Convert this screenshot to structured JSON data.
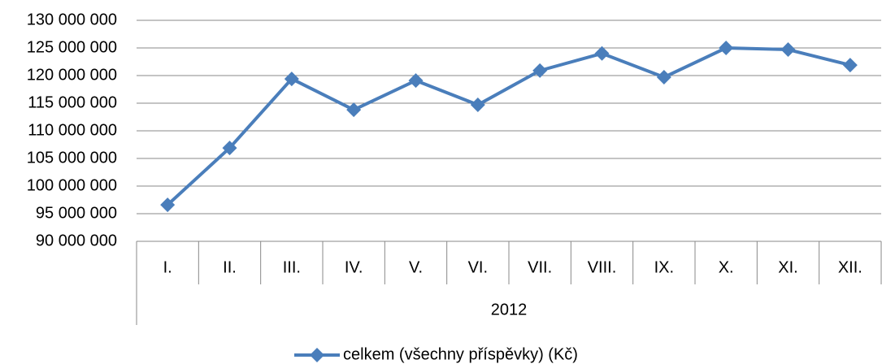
{
  "chart_data": {
    "type": "line",
    "categories": [
      "I.",
      "II.",
      "III.",
      "IV.",
      "V.",
      "VI.",
      "VII.",
      "VIII.",
      "IX.",
      "X.",
      "XI.",
      "XII."
    ],
    "xlabel": "2012",
    "series": [
      {
        "name": "celkem (všechny příspěvky) (Kč)",
        "color": "#4a7ebb",
        "values": [
          96600000,
          106900000,
          119400000,
          113800000,
          119100000,
          114700000,
          120900000,
          124000000,
          119700000,
          125000000,
          124700000,
          121900000
        ]
      }
    ],
    "ylim": [
      90000000,
      130000000
    ],
    "yticks": [
      {
        "value": 90000000,
        "label": "90 000 000"
      },
      {
        "value": 95000000,
        "label": "95 000 000"
      },
      {
        "value": 100000000,
        "label": "100 000 000"
      },
      {
        "value": 105000000,
        "label": "105 000 000"
      },
      {
        "value": 110000000,
        "label": "110 000 000"
      },
      {
        "value": 115000000,
        "label": "115 000 000"
      },
      {
        "value": 120000000,
        "label": "120 000 000"
      },
      {
        "value": 125000000,
        "label": "125 000 000"
      },
      {
        "value": 130000000,
        "label": "130 000 000"
      }
    ],
    "grid": true,
    "legend": "bottom"
  }
}
